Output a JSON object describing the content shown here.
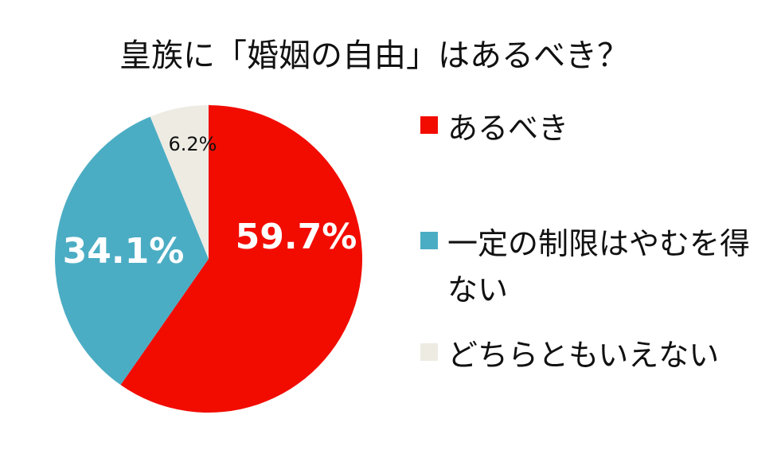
{
  "chart_data": {
    "type": "pie",
    "title": "皇族に「婚姻の自由」はあるべき？",
    "categories": [
      "あるべき",
      "一定の制限はやむを得ない",
      "どちらともいえない"
    ],
    "values": [
      59.7,
      34.1,
      6.2
    ],
    "value_labels": [
      "59.7%",
      "34.1%",
      "6.2%"
    ],
    "colors": [
      "#f20c00",
      "#4badc4",
      "#eeebe3"
    ],
    "legend": "right"
  }
}
